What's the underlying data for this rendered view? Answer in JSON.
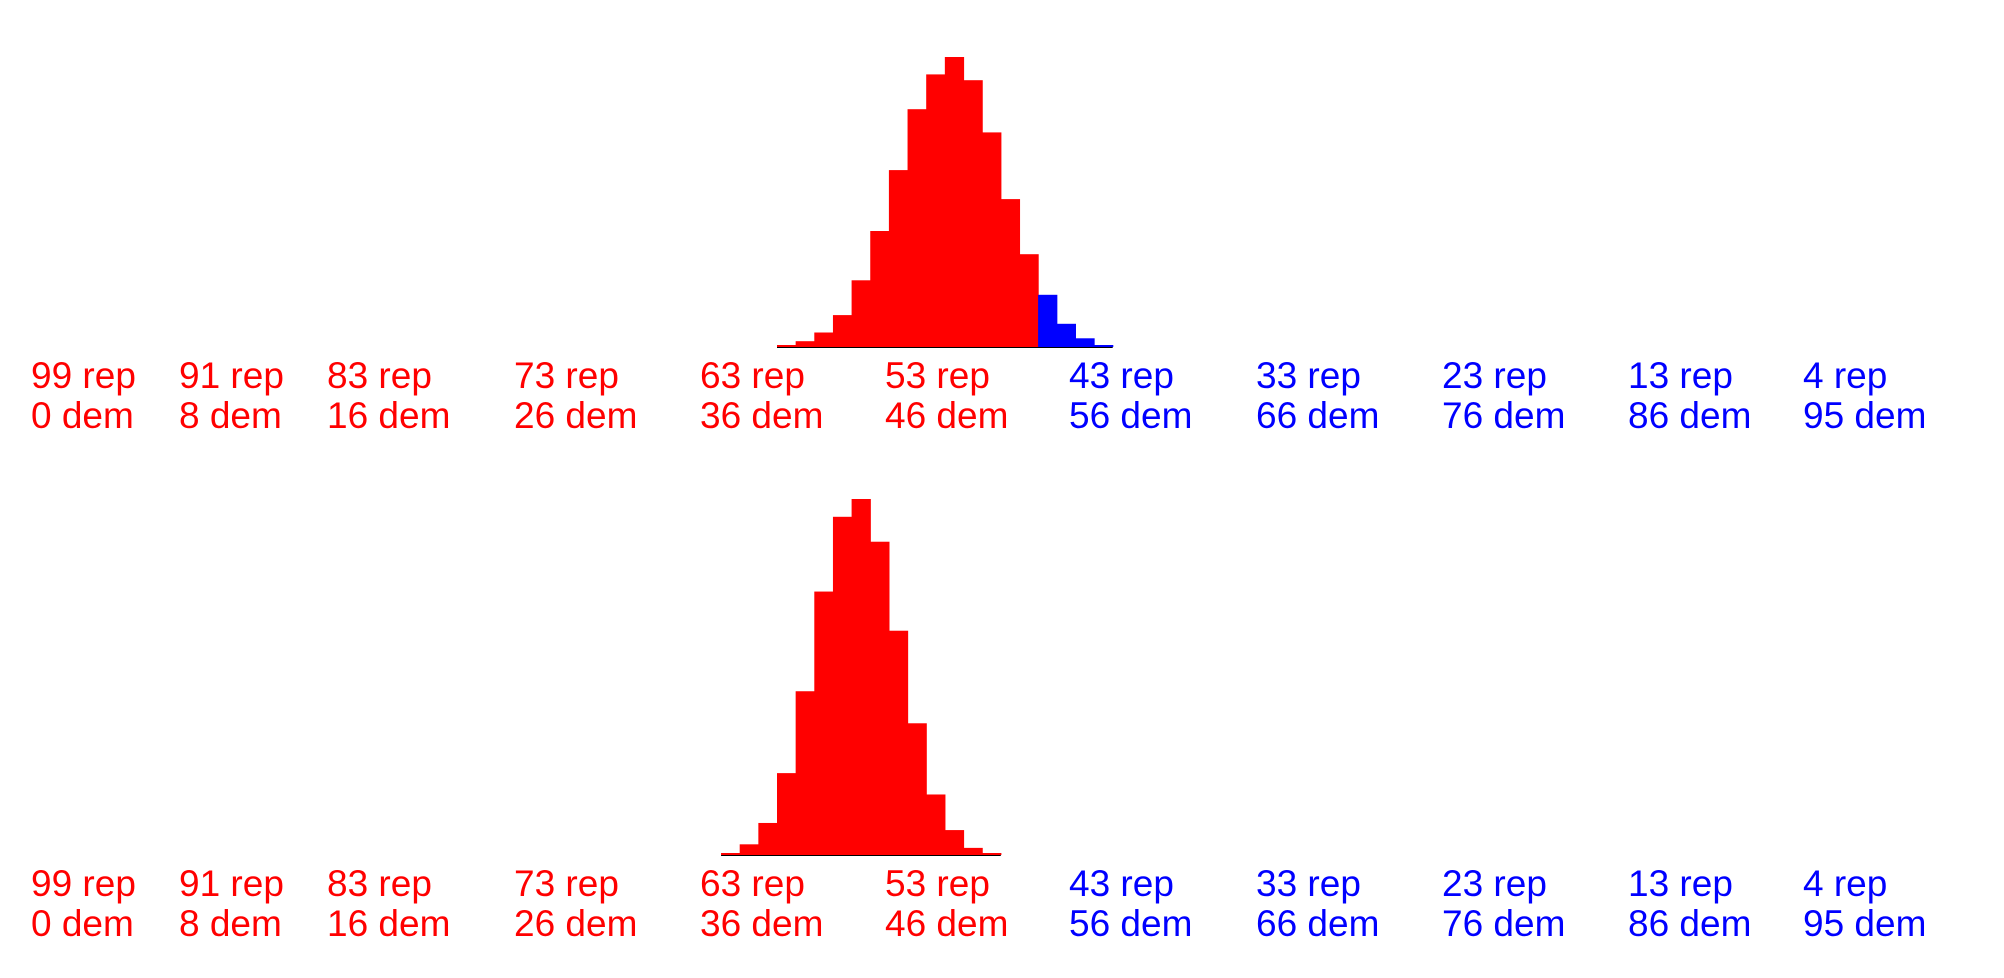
{
  "colors": {
    "rep": "#ff0000",
    "dem": "#0000ff"
  },
  "chart_data": [
    {
      "type": "bar",
      "title": "",
      "xlabel": "",
      "ylabel": "",
      "tick_labels": [
        {
          "rep": "99 rep",
          "dem": "0 dem",
          "party": "rep"
        },
        {
          "rep": "91 rep",
          "dem": "8 dem",
          "party": "rep"
        },
        {
          "rep": "83 rep",
          "dem": "16 dem",
          "party": "rep"
        },
        {
          "rep": "73 rep",
          "dem": "26 dem",
          "party": "rep"
        },
        {
          "rep": "63 rep",
          "dem": "36 dem",
          "party": "rep"
        },
        {
          "rep": "53 rep",
          "dem": "46 dem",
          "party": "rep"
        },
        {
          "rep": "43 rep",
          "dem": "56 dem",
          "party": "dem"
        },
        {
          "rep": "33 rep",
          "dem": "66 dem",
          "party": "dem"
        },
        {
          "rep": "23 rep",
          "dem": "76 dem",
          "party": "dem"
        },
        {
          "rep": "13 rep",
          "dem": "86 dem",
          "party": "dem"
        },
        {
          "rep": "4 rep",
          "dem": "95 dem",
          "party": "dem"
        }
      ],
      "bins": [
        {
          "dem": 40,
          "freq": 0.002,
          "party": "rep"
        },
        {
          "dem": 41,
          "freq": 0.02,
          "party": "rep"
        },
        {
          "dem": 42,
          "freq": 0.05,
          "party": "rep"
        },
        {
          "dem": 43,
          "freq": 0.11,
          "party": "rep"
        },
        {
          "dem": 44,
          "freq": 0.23,
          "party": "rep"
        },
        {
          "dem": 45,
          "freq": 0.4,
          "party": "rep"
        },
        {
          "dem": 46,
          "freq": 0.61,
          "party": "rep"
        },
        {
          "dem": 47,
          "freq": 0.82,
          "party": "rep"
        },
        {
          "dem": 48,
          "freq": 0.94,
          "party": "rep"
        },
        {
          "dem": 49,
          "freq": 1.0,
          "party": "rep"
        },
        {
          "dem": 50,
          "freq": 0.92,
          "party": "rep"
        },
        {
          "dem": 51,
          "freq": 0.74,
          "party": "rep"
        },
        {
          "dem": 52,
          "freq": 0.51,
          "party": "rep"
        },
        {
          "dem": 53,
          "freq": 0.32,
          "party": "rep"
        },
        {
          "dem": 54,
          "freq": 0.18,
          "party": "dem"
        },
        {
          "dem": 55,
          "freq": 0.08,
          "party": "dem"
        },
        {
          "dem": 56,
          "freq": 0.03,
          "party": "dem"
        },
        {
          "dem": 57,
          "freq": 0.005,
          "party": "dem"
        }
      ]
    },
    {
      "type": "bar",
      "title": "",
      "xlabel": "",
      "ylabel": "",
      "tick_labels": [
        {
          "rep": "99 rep",
          "dem": "0 dem",
          "party": "rep"
        },
        {
          "rep": "91 rep",
          "dem": "8 dem",
          "party": "rep"
        },
        {
          "rep": "83 rep",
          "dem": "16 dem",
          "party": "rep"
        },
        {
          "rep": "73 rep",
          "dem": "26 dem",
          "party": "rep"
        },
        {
          "rep": "63 rep",
          "dem": "36 dem",
          "party": "rep"
        },
        {
          "rep": "53 rep",
          "dem": "46 dem",
          "party": "rep"
        },
        {
          "rep": "43 rep",
          "dem": "56 dem",
          "party": "dem"
        },
        {
          "rep": "33 rep",
          "dem": "66 dem",
          "party": "dem"
        },
        {
          "rep": "23 rep",
          "dem": "76 dem",
          "party": "dem"
        },
        {
          "rep": "13 rep",
          "dem": "86 dem",
          "party": "dem"
        },
        {
          "rep": "4 rep",
          "dem": "95 dem",
          "party": "dem"
        }
      ],
      "bins": [
        {
          "dem": 37,
          "freq": 0.002,
          "party": "rep"
        },
        {
          "dem": 38,
          "freq": 0.03,
          "party": "rep"
        },
        {
          "dem": 39,
          "freq": 0.09,
          "party": "rep"
        },
        {
          "dem": 40,
          "freq": 0.23,
          "party": "rep"
        },
        {
          "dem": 41,
          "freq": 0.46,
          "party": "rep"
        },
        {
          "dem": 42,
          "freq": 0.74,
          "party": "rep"
        },
        {
          "dem": 43,
          "freq": 0.95,
          "party": "rep"
        },
        {
          "dem": 44,
          "freq": 1.0,
          "party": "rep"
        },
        {
          "dem": 45,
          "freq": 0.88,
          "party": "rep"
        },
        {
          "dem": 46,
          "freq": 0.63,
          "party": "rep"
        },
        {
          "dem": 47,
          "freq": 0.37,
          "party": "rep"
        },
        {
          "dem": 48,
          "freq": 0.17,
          "party": "rep"
        },
        {
          "dem": 49,
          "freq": 0.07,
          "party": "rep"
        },
        {
          "dem": 50,
          "freq": 0.02,
          "party": "rep"
        },
        {
          "dem": 51,
          "freq": 0.003,
          "party": "rep"
        }
      ]
    }
  ]
}
